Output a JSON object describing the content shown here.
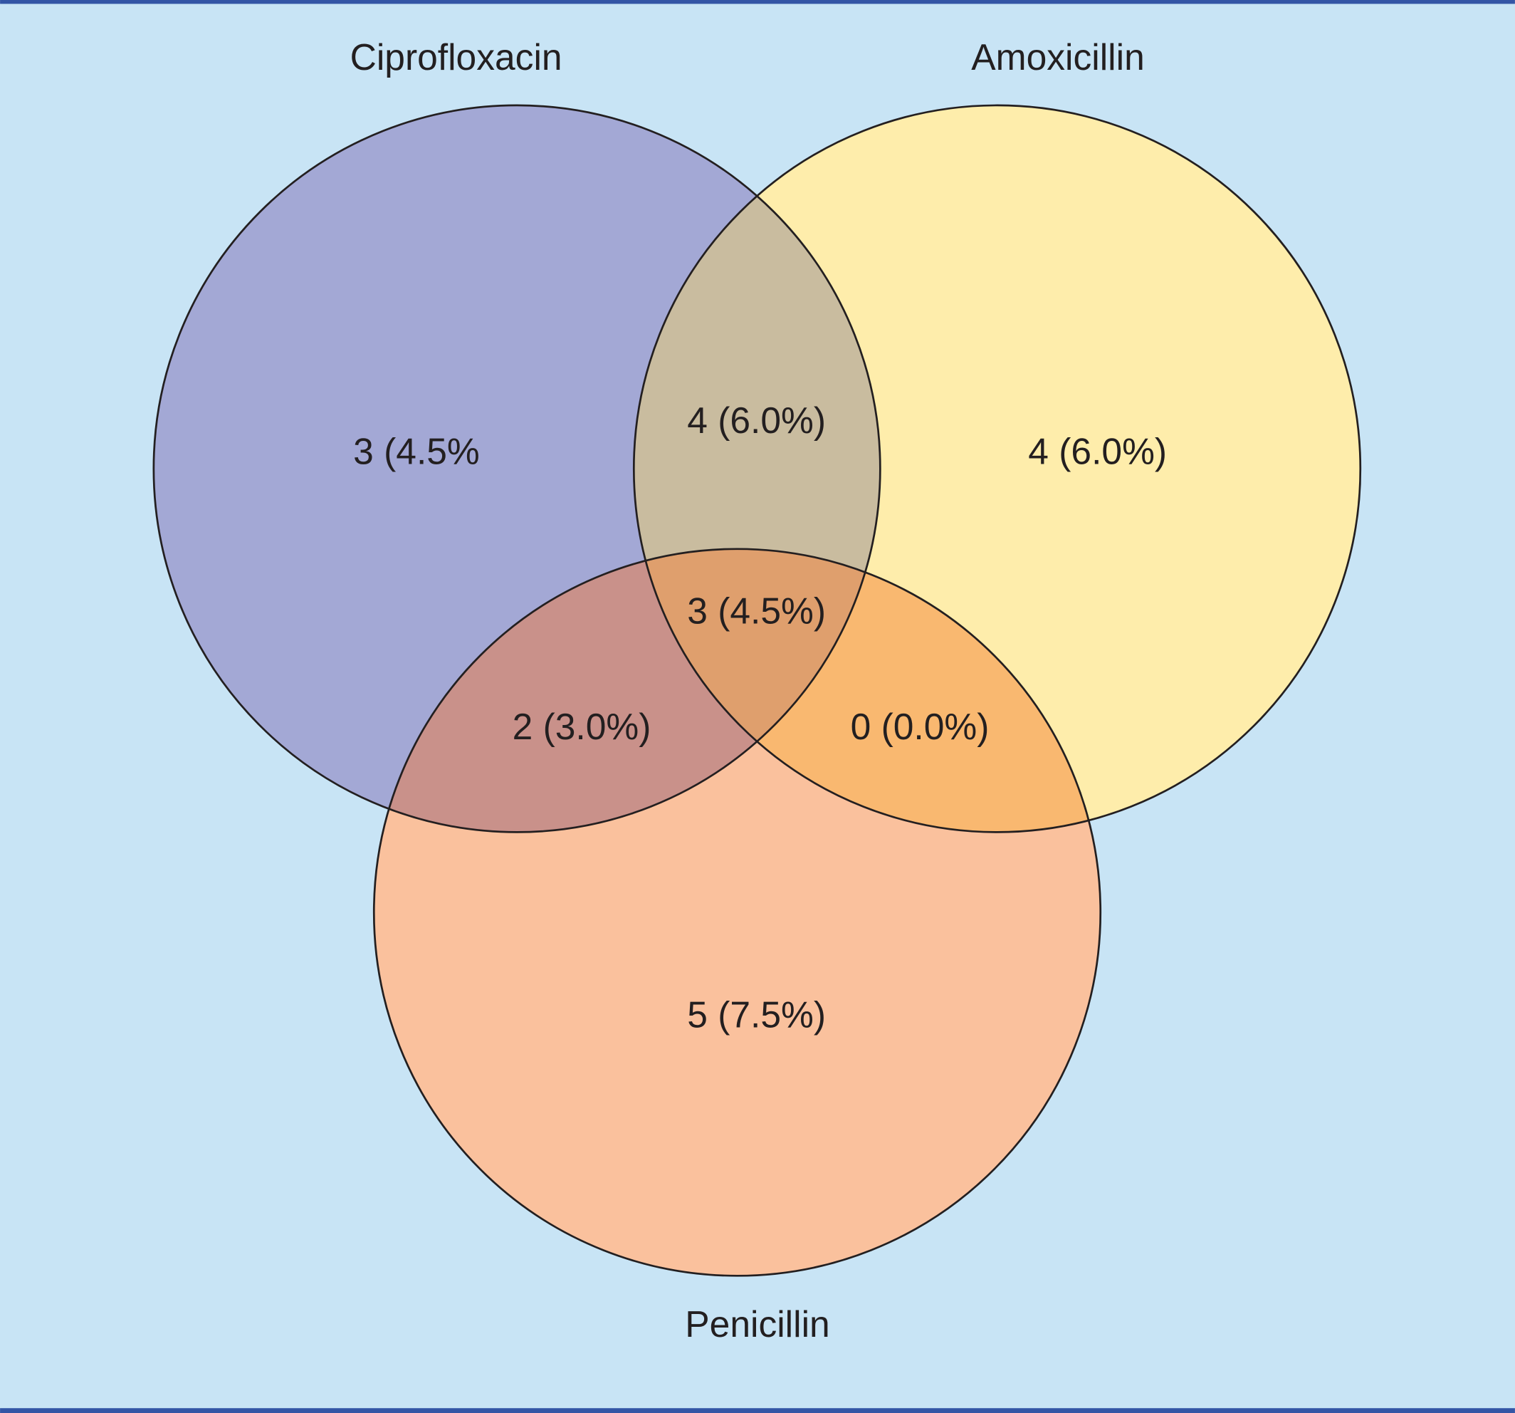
{
  "sets": [
    {
      "label": "Ciprofloxacin"
    },
    {
      "label": "Amoxicillin"
    },
    {
      "label": "Penicillin"
    }
  ],
  "regions": [
    {
      "label": "3 (4.5%"
    },
    {
      "label": "4 (6.0%)"
    },
    {
      "label": "4 (6.0%)"
    },
    {
      "label": "3 (4.5%)"
    },
    {
      "label": "2 (3.0%)"
    },
    {
      "label": "0 (0.0%)"
    },
    {
      "label": "5 (7.5%)"
    }
  ]
}
